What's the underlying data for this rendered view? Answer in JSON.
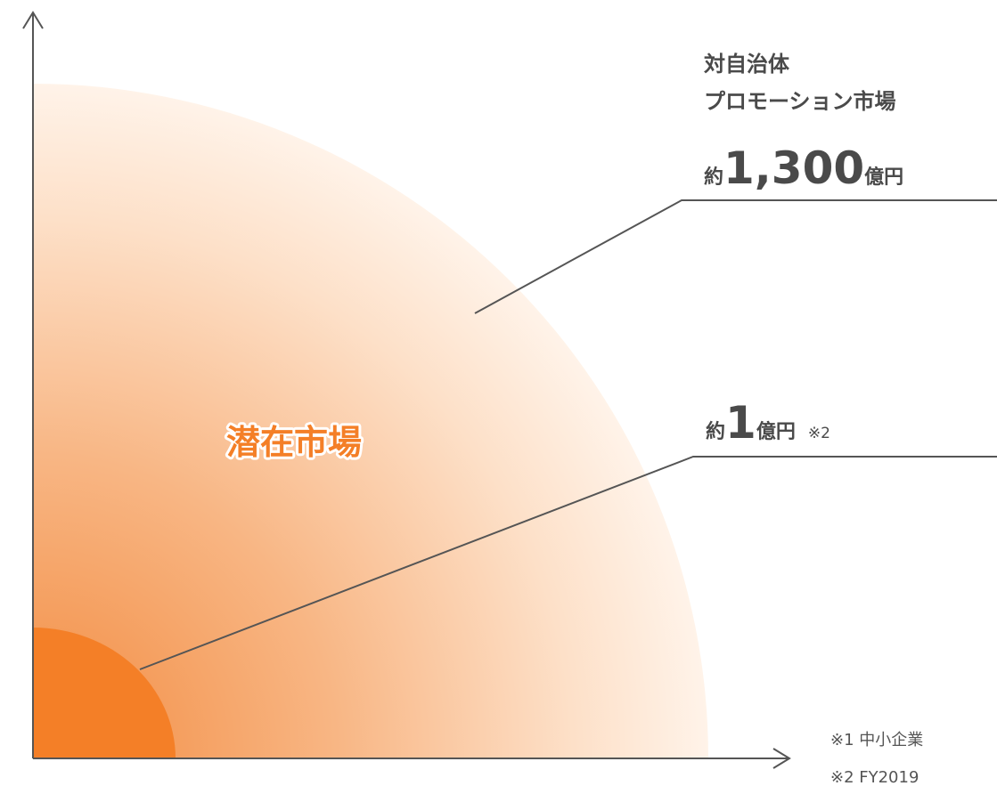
{
  "diagram": {
    "upper_market": {
      "title_lines": [
        "対自治体",
        "プロモーション市場"
      ],
      "prefix": "約",
      "amount": "1,300",
      "unit": "億円"
    },
    "lower_market": {
      "prefix": "約",
      "amount": "1",
      "unit": "億円",
      "note": "※2"
    },
    "center_label": "潜在市場",
    "footnotes": [
      "※1 中小企業",
      "※2 FY2019"
    ]
  }
}
